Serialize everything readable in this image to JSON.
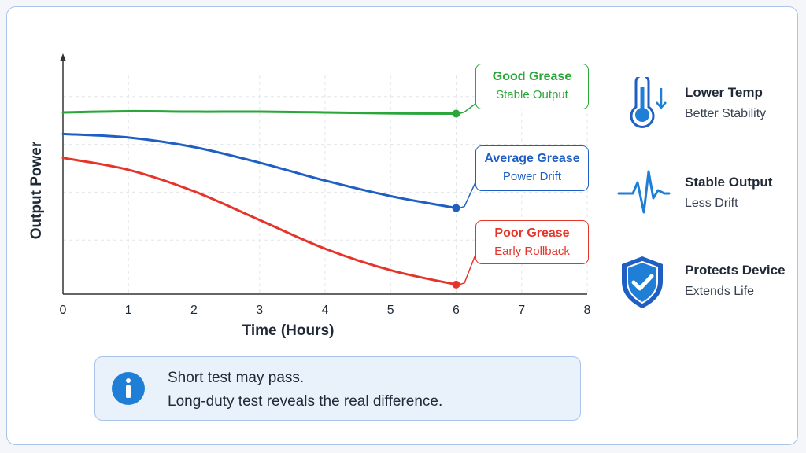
{
  "chart_data": {
    "type": "line",
    "xlabel": "Time (Hours)",
    "ylabel": "Output Power",
    "xlim": [
      0,
      8
    ],
    "ylim": [
      0,
      100
    ],
    "xticks": [
      0,
      1,
      2,
      3,
      4,
      5,
      6,
      7,
      8
    ],
    "grid": true,
    "series": [
      {
        "name": "Good Grease",
        "annotation": "Stable Output",
        "color": "#2aa63a",
        "x": [
          0,
          1,
          2,
          3,
          4,
          5,
          6
        ],
        "y": [
          76,
          76.5,
          76.3,
          76.3,
          76,
          75.6,
          75.5
        ]
      },
      {
        "name": "Average Grease",
        "annotation": "Power Drift",
        "color": "#1f5fc4",
        "x": [
          0,
          1,
          2,
          3,
          4,
          5,
          6
        ],
        "y": [
          67,
          65.5,
          61.5,
          55,
          47.5,
          41,
          36
        ]
      },
      {
        "name": "Poor Grease",
        "annotation": "Early Rollback",
        "color": "#e5352b",
        "x": [
          0,
          1,
          2,
          3,
          4,
          5,
          6
        ],
        "y": [
          57,
          52,
          43,
          31,
          19,
          10,
          4
        ]
      }
    ]
  },
  "features": [
    {
      "icon": "thermometer-icon",
      "title": "Lower Temp",
      "subtitle": "Better Stability"
    },
    {
      "icon": "waveform-icon",
      "title": "Stable Output",
      "subtitle": "Less Drift"
    },
    {
      "icon": "shield-check-icon",
      "title": "Protects Device",
      "subtitle": "Extends Life"
    }
  ],
  "note": {
    "icon": "info-icon",
    "line1": "Short test may pass.",
    "line2": "Long-duty test reveals the real difference."
  },
  "colors": {
    "accent": "#1f7fd6",
    "border": "#a9c4e8",
    "note_bg": "#e9f1fb"
  }
}
